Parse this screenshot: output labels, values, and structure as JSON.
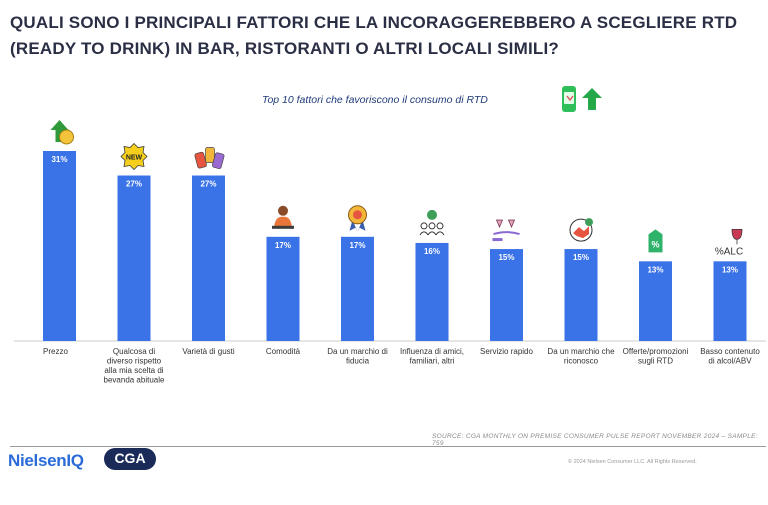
{
  "header": {
    "title": "QUALI SONO I PRINCIPALI FATTORI CHE LA INCORAGGEREBBERO A SCEGLIERE RTD (READY TO DRINK) IN BAR, RISTORANTI O ALTRI LOCALI SIMILI?"
  },
  "chart_data": {
    "type": "bar",
    "title": "Top 10 fattori che favoriscono il consumo di RTD",
    "xlabel": "",
    "ylabel": "",
    "ylim": [
      0,
      31
    ],
    "grid": false,
    "value_suffix": "%",
    "categories": [
      "Prezzo",
      "Qualcosa di diverso rispetto alla mia scelta di bevanda abituale",
      "Varietà di gusti",
      "Comodità",
      "Da un marchio di fiducia",
      "Influenza di amici, familiari, altri",
      "Servizio rapido",
      "Da un marchio che riconosco",
      "Offerte/promozioni sugli RTD",
      "Basso contenuto di alcol/ABV"
    ],
    "values": [
      31,
      27,
      27,
      17,
      17,
      16,
      15,
      15,
      13,
      13
    ],
    "value_labels": [
      "31%",
      "27%",
      "27%",
      "17%",
      "17%",
      "16%",
      "15%",
      "15%",
      "13%",
      "13%"
    ],
    "category_label_lines": [
      [
        "Prezzo"
      ],
      [
        "Qualcosa di",
        "diverso rispetto",
        "alla mia scelta di",
        "bevanda abituale"
      ],
      [
        "Varietà di gusti"
      ],
      [
        "Comodità"
      ],
      [
        "Da un marchio di",
        "fiducia"
      ],
      [
        "Influenza di amici,",
        "familiari, altri"
      ],
      [
        "Servizio rapido"
      ],
      [
        "Da un marchio che",
        "riconosco"
      ],
      [
        "Offerte/promozioni",
        "sugli RTD"
      ],
      [
        "Basso contenuto",
        "di alcol/ABV"
      ]
    ],
    "icons": [
      "money-up-icon",
      "new-badge-icon",
      "cans-icon",
      "relaxing-person-icon",
      "award-badge-icon",
      "group-icon",
      "drinks-tray-icon",
      "brand-handshake-icon",
      "discount-tag-icon",
      "alc-glass-icon"
    ],
    "icon_alc_text": "%ALC",
    "icon_new_text": "NEW",
    "colors": {
      "bar": "#3a72e8",
      "label": "#ffffff",
      "axis": "#cccccc"
    }
  },
  "footer": {
    "source": "SOURCE: CGA MONTHLY ON PREMISE CONSUMER PULSE REPORT NOVEMBER 2024  – SAMPLE: 759",
    "copyright": "© 2024 Nielsen Consumer LLC. All Rights Reserved.",
    "logo_nielsen": "NielsenIQ",
    "logo_cga": "CGA"
  }
}
